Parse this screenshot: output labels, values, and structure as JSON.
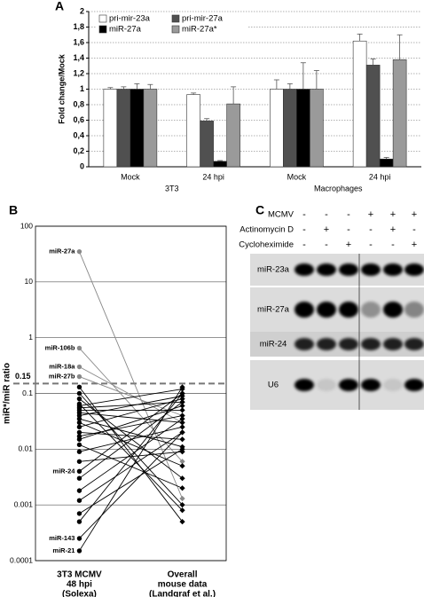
{
  "chart_data": [
    {
      "type": "bar",
      "panel": "A",
      "y_label": "Fold change/Mock",
      "categories": [
        "Mock",
        "24 hpi",
        "Mock",
        "24 hpi"
      ],
      "groups": [
        "3T3",
        "Macrophages"
      ],
      "series": [
        {
          "name": "pri-mir-23a",
          "color": "#ffffff",
          "values": [
            1,
            0.93,
            1,
            1.62
          ],
          "errors": [
            0.02,
            0.02,
            0.12,
            0.09
          ]
        },
        {
          "name": "pri-mir-27a",
          "color": "#505050",
          "values": [
            1,
            0.59,
            1,
            1.31
          ],
          "errors": [
            0.03,
            0.03,
            0.07,
            0.08
          ]
        },
        {
          "name": "miR-27a",
          "color": "#000000",
          "values": [
            1,
            0.07,
            1,
            0.1
          ],
          "errors": [
            0.07,
            0.01,
            0.34,
            0.02
          ]
        },
        {
          "name": "miR-27a*",
          "color": "#9a9a9a",
          "values": [
            1,
            0.81,
            1,
            1.38
          ],
          "errors": [
            0.06,
            0.22,
            0.24,
            0.32
          ]
        }
      ],
      "ylim": [
        0,
        2
      ],
      "yticks": [
        0,
        {
          "value": 0.2,
          "label": "0,2"
        },
        {
          "value": 0.4,
          "label": "0,4"
        },
        {
          "value": 0.6,
          "label": "0,6"
        },
        {
          "value": 0.8,
          "label": "0,8"
        },
        1,
        {
          "value": 1.2,
          "label": "1,2"
        },
        {
          "value": 1.4,
          "label": "1,4"
        },
        {
          "value": 1.6,
          "label": "1,6"
        },
        {
          "value": 1.8,
          "label": "1,8"
        },
        2
      ],
      "grid": true,
      "legend": "top-left"
    },
    {
      "type": "slope",
      "panel": "B",
      "y_label": "miR*/miR ratio",
      "categories": [
        [
          "3T3 MCMV",
          "48 hpi",
          "(Solexa)"
        ],
        [
          "Overall",
          "mouse data",
          "(Landgraf et al.)"
        ]
      ],
      "log_scale": true,
      "ylim": [
        0.0001,
        100
      ],
      "yticks": [
        0.0001,
        0.001,
        0.01,
        0.1,
        1,
        10,
        100
      ],
      "grid": true,
      "threshold": 0.15,
      "series": [
        {
          "name": "miR-27a",
          "color": "#888888",
          "values": [
            35,
            0.0013
          ]
        },
        {
          "name": "miR-106b",
          "color": "#888888",
          "values": [
            0.65,
            0.006
          ]
        },
        {
          "name": "miR-18a",
          "color": "#888888",
          "values": [
            0.3,
            0.03
          ]
        },
        {
          "name": "miR-27b",
          "color": "#888888",
          "values": [
            0.2,
            0.04
          ]
        },
        {
          "name": "miR-24",
          "color": "#000000",
          "values": [
            0.004,
            0.1
          ]
        },
        {
          "name": "miR-143",
          "color": "#000000",
          "values": [
            0.00025,
            0.02
          ]
        },
        {
          "name": "miR-21",
          "color": "#000000",
          "values": [
            0.00015,
            0.13
          ]
        },
        {
          "color": "#000000",
          "values": [
            0.13,
            0.0005
          ]
        },
        {
          "color": "#000000",
          "values": [
            0.1,
            0.001
          ]
        },
        {
          "color": "#000000",
          "values": [
            0.08,
            0.003
          ]
        },
        {
          "color": "#000000",
          "values": [
            0.065,
            0.0008
          ]
        },
        {
          "color": "#000000",
          "values": [
            0.06,
            0.12
          ]
        },
        {
          "color": "#000000",
          "values": [
            0.055,
            0.07
          ]
        },
        {
          "color": "#000000",
          "values": [
            0.05,
            0.05
          ]
        },
        {
          "color": "#000000",
          "values": [
            0.045,
            0.03
          ]
        },
        {
          "color": "#000000",
          "values": [
            0.04,
            0.09
          ]
        },
        {
          "color": "#000000",
          "values": [
            0.035,
            0.011
          ]
        },
        {
          "color": "#000000",
          "values": [
            0.03,
            0.005
          ]
        },
        {
          "color": "#000000",
          "values": [
            0.025,
            0.08
          ]
        },
        {
          "color": "#000000",
          "values": [
            0.02,
            0.015
          ]
        },
        {
          "color": "#000000",
          "values": [
            0.017,
            0.04
          ]
        },
        {
          "color": "#000000",
          "values": [
            0.015,
            0.06
          ]
        },
        {
          "color": "#000000",
          "values": [
            0.012,
            0.002
          ]
        },
        {
          "color": "#000000",
          "values": [
            0.009,
            0.025
          ]
        },
        {
          "color": "#000000",
          "values": [
            0.006,
            0.009
          ]
        },
        {
          "color": "#000000",
          "values": [
            0.003,
            0.07
          ]
        },
        {
          "color": "#000000",
          "values": [
            0.0018,
            0.035
          ]
        },
        {
          "color": "#000000",
          "values": [
            0.0012,
            0.02
          ]
        },
        {
          "color": "#000000",
          "values": [
            0.0007,
            0.01
          ]
        },
        {
          "color": "#000000",
          "values": [
            0.0005,
            0.1
          ]
        }
      ]
    }
  ],
  "blot": {
    "panel": "C",
    "conditions": [
      {
        "label": "MCMV",
        "signs": [
          "-",
          "-",
          "-",
          "+",
          "+",
          "+"
        ]
      },
      {
        "label": "Actinomycin D",
        "signs": [
          "-",
          "+",
          "-",
          "-",
          "+",
          "-"
        ]
      },
      {
        "label": "Cycloheximide",
        "signs": [
          "-",
          "-",
          "+",
          "-",
          "-",
          "+"
        ]
      }
    ],
    "rows": [
      {
        "label": "miR-23a",
        "intensity": [
          1,
          1,
          1,
          1,
          1,
          1
        ]
      },
      {
        "label": "miR-27a",
        "intensity": [
          1,
          1,
          1,
          0.35,
          1,
          0.4
        ]
      },
      {
        "label": "miR-24",
        "intensity": [
          0.85,
          0.85,
          0.85,
          0.85,
          0.85,
          0.85
        ]
      },
      {
        "label": "U6",
        "intensity": [
          1,
          0.1,
          1,
          1,
          0.1,
          1
        ]
      }
    ]
  }
}
